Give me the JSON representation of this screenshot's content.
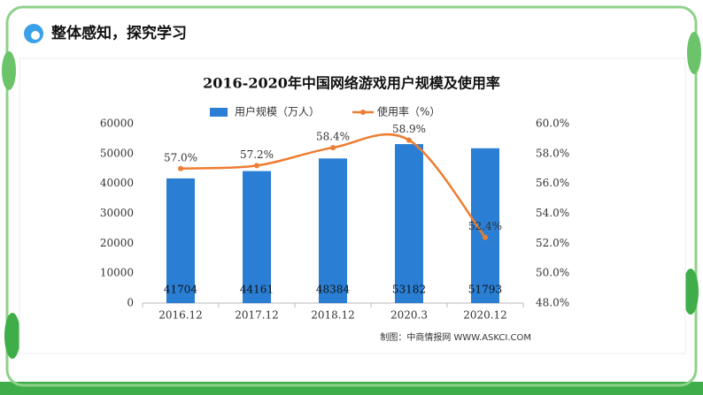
{
  "header": {
    "title": "整体感知，探究学习"
  },
  "chart_data": {
    "type": "bar",
    "title": "2016-2020年中国网络游戏用户规模及使用率",
    "source": "制图：中商情报网 WWW.ASKCI.COM",
    "categories": [
      "2016.12",
      "2017.12",
      "2018.12",
      "2020.3",
      "2020.12"
    ],
    "series": [
      {
        "name": "用户规模（万人）",
        "color": "#2a7fd4",
        "type": "bar",
        "values": [
          41704,
          44161,
          48384,
          53182,
          51793
        ]
      },
      {
        "name": "使用率（%）",
        "color": "#ed7d31",
        "type": "line",
        "axis": "y2",
        "values": [
          57.0,
          57.2,
          58.4,
          58.9,
          52.4
        ],
        "value_labels": [
          "57.0%",
          "57.2%",
          "58.4%",
          "58.9%",
          "52.4%"
        ]
      }
    ],
    "ylim": [
      0,
      60000
    ],
    "yticks": [
      0,
      10000,
      20000,
      30000,
      40000,
      50000,
      60000
    ],
    "y2lim": [
      48,
      60
    ],
    "y2ticks": [
      {
        "value": 48,
        "label": "48.0%"
      },
      {
        "value": 50,
        "label": "50.0%"
      },
      {
        "value": 52,
        "label": "52.0%"
      },
      {
        "value": 54,
        "label": "54.0%"
      },
      {
        "value": 56,
        "label": "56.0%"
      },
      {
        "value": 58,
        "label": "58.0%"
      },
      {
        "value": 60,
        "label": "60.0%"
      }
    ],
    "legend": "top"
  }
}
